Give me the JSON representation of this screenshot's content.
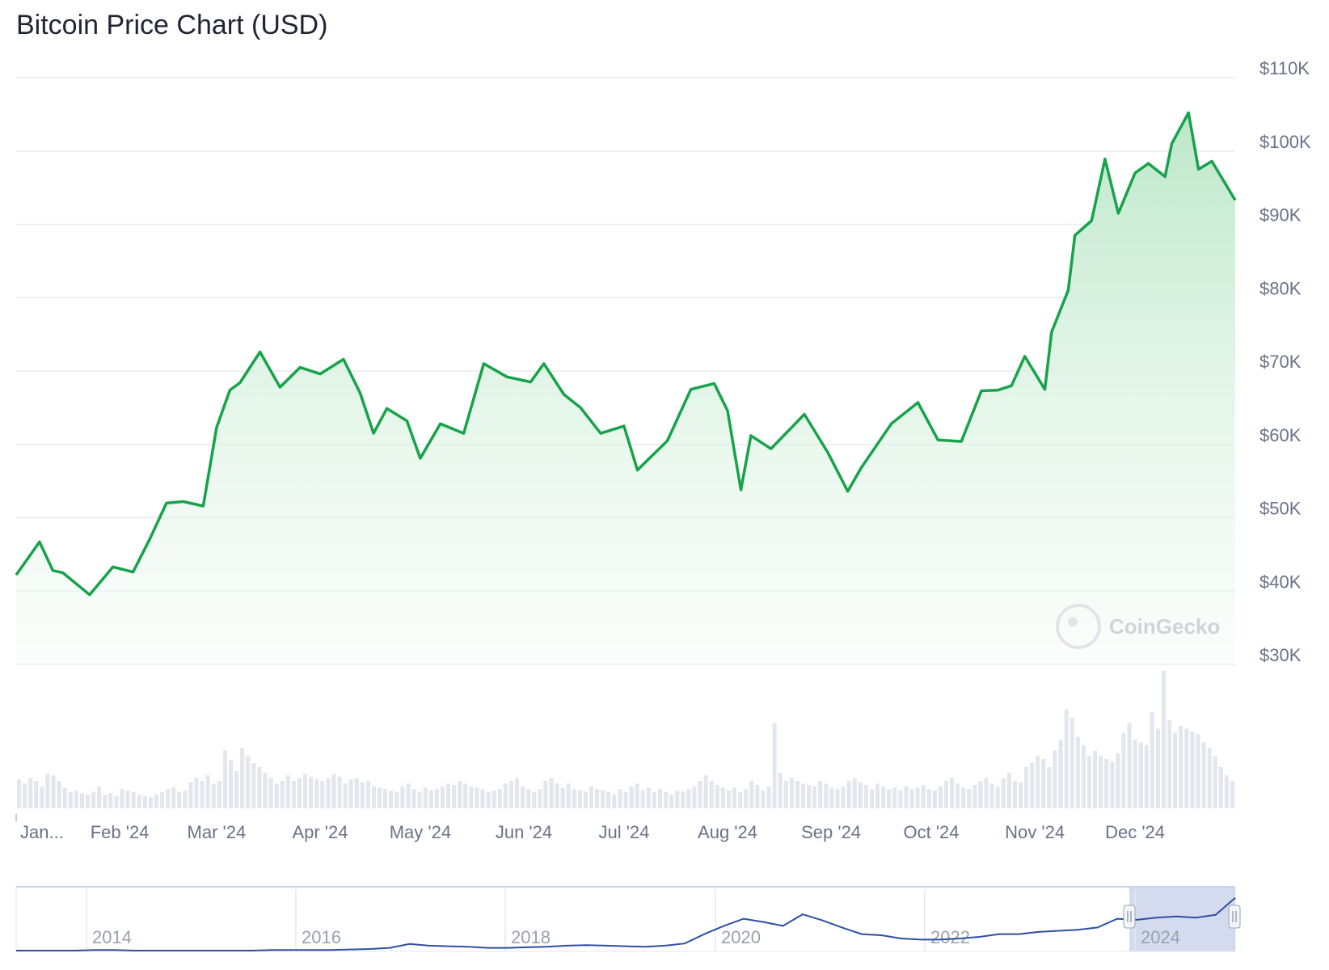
{
  "title": "Bitcoin Price Chart (USD)",
  "brand": "CoinGecko",
  "colors": {
    "line": "#16a34a",
    "fill_top": "#bfe8cc",
    "volume": "#e3e6ec",
    "grid": "#e9ebef",
    "navigator_line": "#2f4fa2",
    "navigator_selection": "#c9d2ea"
  },
  "chart_data": {
    "type": "area",
    "y_axis": {
      "ticks": [
        "$110K",
        "$100K",
        "$90K",
        "$80K",
        "$70K",
        "$60K",
        "$50K",
        "$40K",
        "$30K"
      ],
      "range": [
        30000,
        110000
      ]
    },
    "x_axis": {
      "ticks": [
        "Jan...",
        "Feb '24",
        "Mar '24",
        "Apr '24",
        "May '24",
        "Jun '24",
        "Jul '24",
        "Aug '24",
        "Sep '24",
        "Oct '24",
        "Nov '24",
        "Dec '24"
      ]
    },
    "series": [
      {
        "x": [
          "2024-01-01",
          "2024-01-08",
          "2024-01-12",
          "2024-01-15",
          "2024-01-23",
          "2024-01-30",
          "2024-02-05",
          "2024-02-10",
          "2024-02-15",
          "2024-02-20",
          "2024-02-26",
          "2024-03-01",
          "2024-03-05",
          "2024-03-08",
          "2024-03-14",
          "2024-03-20",
          "2024-03-26",
          "2024-04-01",
          "2024-04-08",
          "2024-04-13",
          "2024-04-17",
          "2024-04-21",
          "2024-04-27",
          "2024-05-01",
          "2024-05-07",
          "2024-05-14",
          "2024-05-20",
          "2024-05-27",
          "2024-06-03",
          "2024-06-07",
          "2024-06-13",
          "2024-06-18",
          "2024-06-24",
          "2024-07-01",
          "2024-07-05",
          "2024-07-14",
          "2024-07-21",
          "2024-07-28",
          "2024-08-01",
          "2024-08-05",
          "2024-08-08",
          "2024-08-14",
          "2024-08-24",
          "2024-08-31",
          "2024-09-06",
          "2024-09-10",
          "2024-09-19",
          "2024-09-27",
          "2024-10-03",
          "2024-10-10",
          "2024-10-16",
          "2024-10-21",
          "2024-10-25",
          "2024-10-29",
          "2024-11-04",
          "2024-11-06",
          "2024-11-11",
          "2024-11-13",
          "2024-11-18",
          "2024-11-22",
          "2024-11-26",
          "2024-12-01",
          "2024-12-05",
          "2024-12-10",
          "2024-12-12",
          "2024-12-17",
          "2024-12-20",
          "2024-12-24",
          "2024-12-31"
        ],
        "values": [
          42200,
          46700,
          42800,
          42500,
          39500,
          43300,
          42600,
          47100,
          52000,
          52200,
          51600,
          62300,
          67400,
          68400,
          72600,
          67800,
          70500,
          69600,
          71600,
          67000,
          61500,
          64900,
          63200,
          58100,
          62800,
          61500,
          71000,
          69200,
          68500,
          71000,
          66800,
          65000,
          61500,
          62500,
          56500,
          60500,
          67500,
          68300,
          64600,
          53800,
          61200,
          59400,
          64100,
          58900,
          53600,
          56800,
          62800,
          65700,
          60600,
          60400,
          67300,
          67400,
          68000,
          72000,
          67500,
          75300,
          81000,
          88500,
          90500,
          98900,
          91500,
          97000,
          98300,
          96500,
          101000,
          105200,
          97500,
          98600,
          93300
        ]
      }
    ],
    "volume": {
      "note": "relative daily volume bars (0-1 of max)",
      "values": [
        0.21,
        0.18,
        0.22,
        0.2,
        0.16,
        0.25,
        0.24,
        0.2,
        0.15,
        0.12,
        0.13,
        0.11,
        0.1,
        0.12,
        0.16,
        0.1,
        0.11,
        0.09,
        0.14,
        0.13,
        0.12,
        0.1,
        0.09,
        0.08,
        0.1,
        0.12,
        0.14,
        0.15,
        0.12,
        0.13,
        0.19,
        0.22,
        0.2,
        0.24,
        0.18,
        0.2,
        0.42,
        0.35,
        0.27,
        0.44,
        0.38,
        0.33,
        0.3,
        0.26,
        0.22,
        0.18,
        0.2,
        0.24,
        0.2,
        0.22,
        0.25,
        0.23,
        0.21,
        0.2,
        0.22,
        0.25,
        0.23,
        0.18,
        0.21,
        0.22,
        0.19,
        0.2,
        0.16,
        0.15,
        0.14,
        0.13,
        0.12,
        0.16,
        0.18,
        0.14,
        0.12,
        0.15,
        0.13,
        0.14,
        0.16,
        0.18,
        0.17,
        0.2,
        0.18,
        0.16,
        0.15,
        0.14,
        0.12,
        0.13,
        0.14,
        0.18,
        0.2,
        0.22,
        0.16,
        0.14,
        0.12,
        0.14,
        0.2,
        0.22,
        0.18,
        0.15,
        0.18,
        0.14,
        0.13,
        0.12,
        0.16,
        0.14,
        0.13,
        0.12,
        0.1,
        0.14,
        0.12,
        0.16,
        0.18,
        0.13,
        0.15,
        0.12,
        0.14,
        0.12,
        0.1,
        0.13,
        0.12,
        0.14,
        0.16,
        0.2,
        0.24,
        0.2,
        0.17,
        0.15,
        0.13,
        0.15,
        0.12,
        0.14,
        0.2,
        0.17,
        0.13,
        0.16,
        0.62,
        0.26,
        0.2,
        0.22,
        0.2,
        0.18,
        0.17,
        0.16,
        0.2,
        0.18,
        0.15,
        0.14,
        0.16,
        0.2,
        0.22,
        0.19,
        0.17,
        0.14,
        0.18,
        0.16,
        0.14,
        0.15,
        0.13,
        0.16,
        0.14,
        0.15,
        0.17,
        0.14,
        0.13,
        0.16,
        0.2,
        0.22,
        0.18,
        0.15,
        0.14,
        0.17,
        0.2,
        0.22,
        0.18,
        0.16,
        0.22,
        0.26,
        0.2,
        0.19,
        0.3,
        0.33,
        0.38,
        0.36,
        0.3,
        0.42,
        0.5,
        0.72,
        0.66,
        0.52,
        0.46,
        0.38,
        0.42,
        0.38,
        0.36,
        0.34,
        0.4,
        0.55,
        0.62,
        0.5,
        0.48,
        0.46,
        0.7,
        0.58,
        1.0,
        0.64,
        0.55,
        0.6,
        0.58,
        0.56,
        0.54,
        0.48,
        0.44,
        0.38,
        0.3,
        0.24,
        0.2
      ],
      "color": "#e3e6ec"
    }
  },
  "navigator": {
    "labels": [
      "2014",
      "2016",
      "2018",
      "2020",
      "2022",
      "2024"
    ],
    "series": [
      0.0,
      0.0,
      0.0,
      0.0,
      0.01,
      0.01,
      0.0,
      0.0,
      0.0,
      0.0,
      0.0,
      0.0,
      0.0,
      0.01,
      0.01,
      0.01,
      0.01,
      0.02,
      0.03,
      0.05,
      0.12,
      0.09,
      0.08,
      0.07,
      0.05,
      0.05,
      0.06,
      0.07,
      0.09,
      0.1,
      0.09,
      0.08,
      0.07,
      0.09,
      0.13,
      0.3,
      0.45,
      0.58,
      0.52,
      0.45,
      0.66,
      0.55,
      0.42,
      0.3,
      0.28,
      0.22,
      0.2,
      0.2,
      0.22,
      0.25,
      0.3,
      0.3,
      0.34,
      0.36,
      0.38,
      0.42,
      0.58,
      0.56,
      0.6,
      0.62,
      0.6,
      0.65,
      0.96
    ],
    "selection_range": [
      "2024-01-01",
      "2024-12-31"
    ]
  }
}
